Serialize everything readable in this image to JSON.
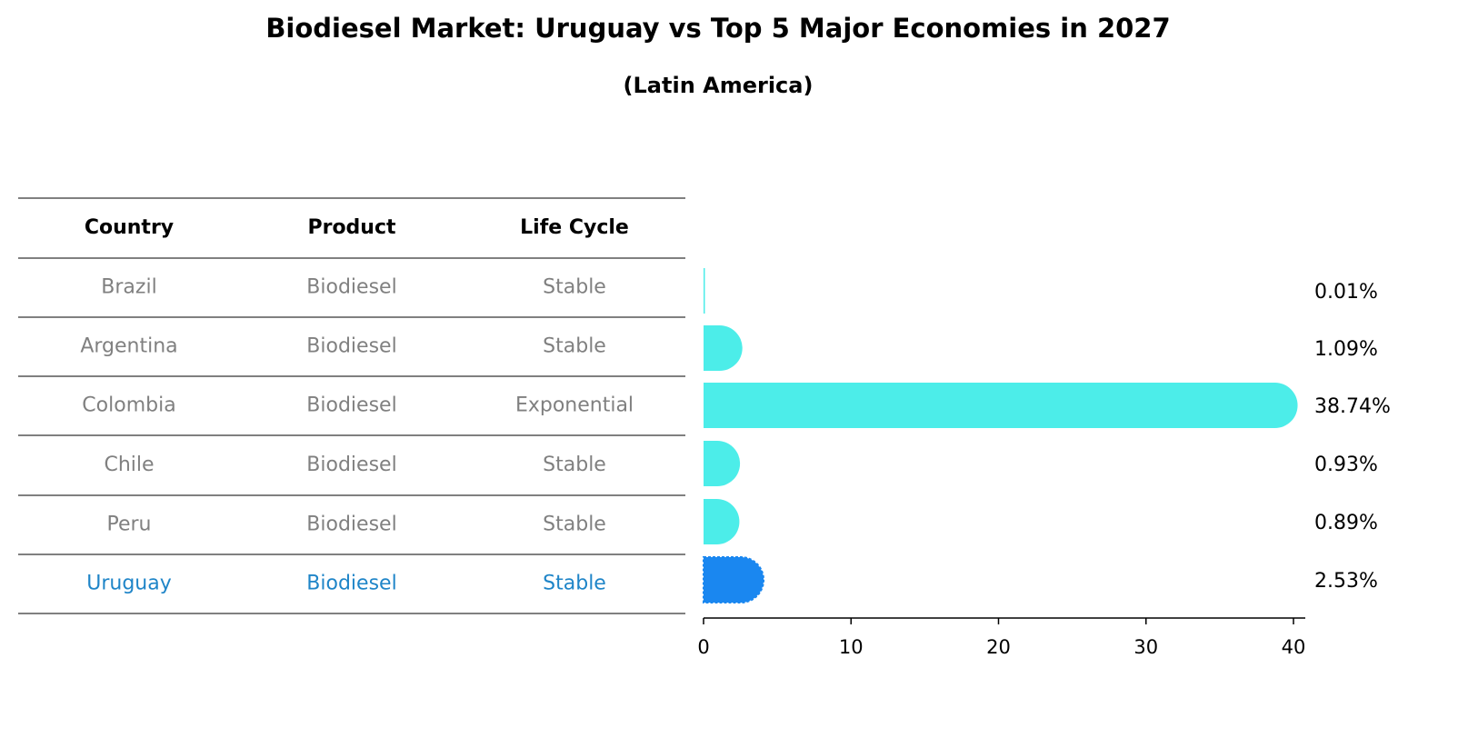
{
  "chart_data": {
    "type": "table+bar",
    "title": "Biodiesel Market: Uruguay vs Top 5 Major Economies in 2027",
    "subtitle": "(Latin America)",
    "table": {
      "headers": [
        "Country",
        "Product",
        "Life Cycle"
      ],
      "rows": [
        {
          "country": "Brazil",
          "product": "Biodiesel",
          "life_cycle": "Stable",
          "highlight": false
        },
        {
          "country": "Argentina",
          "product": "Biodiesel",
          "life_cycle": "Stable",
          "highlight": false
        },
        {
          "country": "Colombia",
          "product": "Biodiesel",
          "life_cycle": "Exponential",
          "highlight": false
        },
        {
          "country": "Chile",
          "product": "Biodiesel",
          "life_cycle": "Stable",
          "highlight": false
        },
        {
          "country": "Peru",
          "product": "Biodiesel",
          "life_cycle": "Stable",
          "highlight": false
        },
        {
          "country": "Uruguay",
          "product": "Biodiesel",
          "life_cycle": "Stable",
          "highlight": true
        }
      ]
    },
    "bars": {
      "values": [
        0.01,
        1.09,
        38.74,
        0.93,
        0.89,
        2.53
      ],
      "labels": [
        "0.01%",
        "1.09%",
        "38.74%",
        "0.93%",
        "0.89%",
        "2.53%"
      ],
      "xlim": [
        0,
        40.5
      ],
      "xticks": [
        0,
        10,
        20,
        30,
        40
      ],
      "xtick_labels": [
        "0",
        "10",
        "20",
        "30",
        "40"
      ]
    },
    "colors": {
      "bar": "#4cede9",
      "highlight_bar": "#1a87f0",
      "highlight_text": "#1f85c8",
      "muted_text": "#808080",
      "line": "#000000"
    }
  }
}
